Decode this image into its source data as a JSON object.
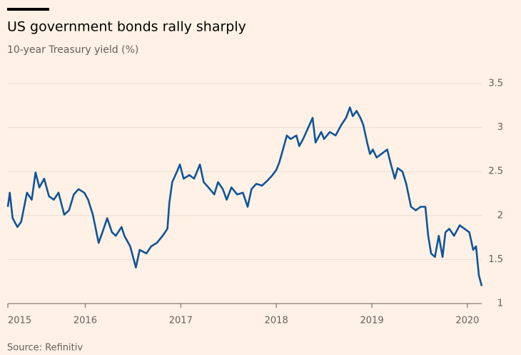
{
  "chart_data": {
    "type": "line",
    "title": "US government bonds rally sharply",
    "subtitle": "10-year Treasury yield (%)",
    "source": "Source: Refinitiv",
    "color": "#0f5499",
    "grid": true,
    "x": [
      2015.19,
      2015.21,
      2015.24,
      2015.29,
      2015.33,
      2015.39,
      2015.44,
      2015.48,
      2015.52,
      2015.57,
      2015.62,
      2015.67,
      2015.72,
      2015.78,
      2015.83,
      2015.88,
      2015.93,
      2015.99,
      2016.03,
      2016.08,
      2016.14,
      2016.18,
      2016.23,
      2016.28,
      2016.32,
      2016.38,
      2016.41,
      2016.47,
      2016.53,
      2016.57,
      2016.64,
      2016.69,
      2016.75,
      2016.81,
      2016.86,
      2016.88,
      2016.91,
      2016.96,
      2016.99,
      2017.03,
      2017.09,
      2017.14,
      2017.2,
      2017.24,
      2017.29,
      2017.35,
      2017.39,
      2017.44,
      2017.48,
      2017.53,
      2017.59,
      2017.65,
      2017.7,
      2017.74,
      2017.79,
      2017.85,
      2017.91,
      2017.96,
      2018.0,
      2018.03,
      2018.07,
      2018.11,
      2018.15,
      2018.21,
      2018.24,
      2018.28,
      2018.33,
      2018.38,
      2018.41,
      2018.47,
      2018.5,
      2018.56,
      2018.62,
      2018.68,
      2018.73,
      2018.77,
      2018.8,
      2018.84,
      2018.88,
      2018.91,
      2018.95,
      2018.98,
      2019.01,
      2019.05,
      2019.1,
      2019.16,
      2019.2,
      2019.24,
      2019.27,
      2019.32,
      2019.36,
      2019.41,
      2019.46,
      2019.51,
      2019.56,
      2019.59,
      2019.62,
      2019.66,
      2019.7,
      2019.74,
      2019.77,
      2019.81,
      2019.86,
      2019.92,
      2019.97,
      2020.02,
      2020.06,
      2020.09,
      2020.12,
      2020.15
    ],
    "values": [
      2.1,
      2.26,
      1.97,
      1.87,
      1.93,
      2.26,
      2.18,
      2.49,
      2.32,
      2.42,
      2.22,
      2.18,
      2.26,
      2.01,
      2.06,
      2.24,
      2.3,
      2.26,
      2.18,
      2.01,
      1.69,
      1.81,
      1.97,
      1.81,
      1.77,
      1.87,
      1.77,
      1.65,
      1.41,
      1.61,
      1.57,
      1.65,
      1.69,
      1.77,
      1.85,
      2.14,
      2.38,
      2.5,
      2.58,
      2.42,
      2.46,
      2.42,
      2.58,
      2.38,
      2.32,
      2.24,
      2.38,
      2.3,
      2.18,
      2.32,
      2.24,
      2.26,
      2.1,
      2.3,
      2.36,
      2.34,
      2.4,
      2.46,
      2.52,
      2.6,
      2.75,
      2.91,
      2.87,
      2.91,
      2.79,
      2.87,
      2.99,
      3.11,
      2.83,
      2.95,
      2.87,
      2.95,
      2.91,
      3.03,
      3.11,
      3.23,
      3.13,
      3.19,
      3.11,
      3.03,
      2.83,
      2.7,
      2.75,
      2.66,
      2.7,
      2.75,
      2.58,
      2.42,
      2.54,
      2.5,
      2.36,
      2.1,
      2.06,
      2.1,
      2.1,
      1.77,
      1.57,
      1.53,
      1.77,
      1.53,
      1.81,
      1.85,
      1.77,
      1.89,
      1.85,
      1.81,
      1.61,
      1.65,
      1.32,
      1.2
    ],
    "xlim": [
      2015.19,
      2020.15
    ],
    "xticks": [
      {
        "value": 2015.19,
        "label": "2015"
      },
      2016,
      2017,
      2018,
      2019,
      2020
    ],
    "ylim": [
      1,
      3.5
    ],
    "yticks": [
      1,
      1.5,
      2,
      2.5,
      3,
      3.5
    ]
  }
}
